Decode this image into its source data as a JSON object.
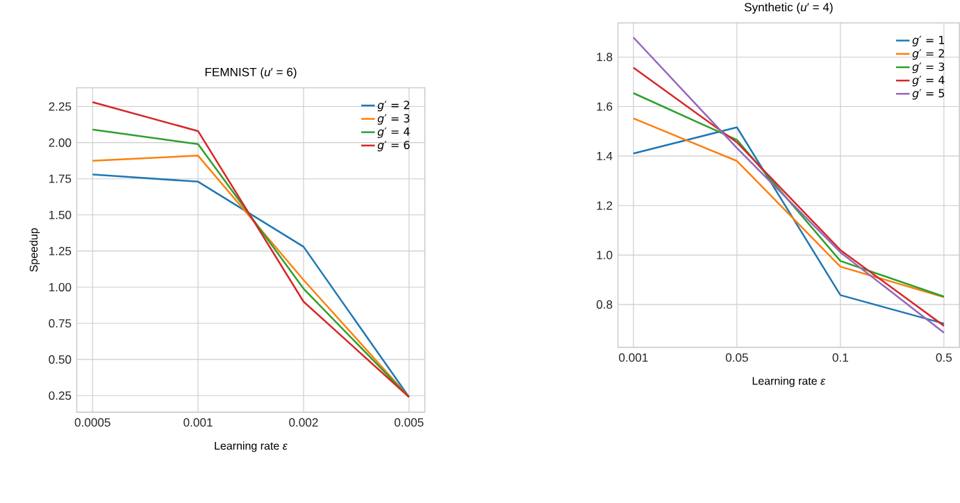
{
  "chart_data": [
    {
      "type": "line",
      "title": "FEMNIST (*u*′ = 6)",
      "xlabel": "Learning rate *ε*",
      "ylabel": "Speedup",
      "categories": [
        "0.0005",
        "0.001",
        "0.002",
        "0.005"
      ],
      "series": [
        {
          "name": "*g*′ = 2",
          "color": "#1f77b4",
          "values": [
            1.78,
            1.73,
            1.28,
            0.24
          ]
        },
        {
          "name": "*g*′ = 3",
          "color": "#ff7f0e",
          "values": [
            1.875,
            1.91,
            1.05,
            0.24
          ]
        },
        {
          "name": "*g*′ = 4",
          "color": "#2ca02c",
          "values": [
            2.09,
            1.99,
            0.99,
            0.24
          ]
        },
        {
          "name": "*g*′ = 6",
          "color": "#d62728",
          "values": [
            2.28,
            2.08,
            0.9,
            0.24
          ]
        }
      ],
      "ylim": [
        0.135,
        2.38
      ],
      "yticks": [
        0.25,
        {
          "value": 0.5,
          "label": "0.50"
        },
        0.75,
        {
          "value": 1.0,
          "label": "1.00"
        },
        1.25,
        {
          "value": 1.5,
          "label": "1.50"
        },
        1.75,
        {
          "value": 2.0,
          "label": "2.00"
        },
        2.25
      ],
      "grid": true,
      "legend": "top right",
      "marker": "none",
      "line_style": "solid"
    },
    {
      "type": "line",
      "title": "Synthetic (*u*′ = 4)",
      "xlabel": "Learning rate *ε*",
      "categories": [
        "0.001",
        "0.05",
        "0.1",
        "0.5"
      ],
      "series": [
        {
          "name": "*g*′ = 1",
          "color": "#1f77b4",
          "values": [
            1.41,
            1.516,
            0.838,
            0.723
          ]
        },
        {
          "name": "*g*′ = 2",
          "color": "#ff7f0e",
          "values": [
            1.552,
            1.38,
            0.953,
            0.83
          ]
        },
        {
          "name": "*g*′ = 3",
          "color": "#2ca02c",
          "values": [
            1.654,
            1.465,
            0.976,
            0.832
          ]
        },
        {
          "name": "*g*′ = 4",
          "color": "#d62728",
          "values": [
            1.757,
            1.455,
            1.02,
            0.714
          ]
        },
        {
          "name": "*g*′ = 5",
          "color": "#9467bd",
          "values": [
            1.879,
            1.432,
            1.011,
            0.686
          ]
        }
      ],
      "ylim": [
        0.627,
        1.938
      ],
      "yticks": [
        0.8,
        {
          "value": 1.0,
          "label": "1.0"
        },
        1.2,
        1.4,
        1.6,
        1.8
      ],
      "grid": true,
      "legend": "top right",
      "marker": "none",
      "line_style": "solid"
    }
  ]
}
